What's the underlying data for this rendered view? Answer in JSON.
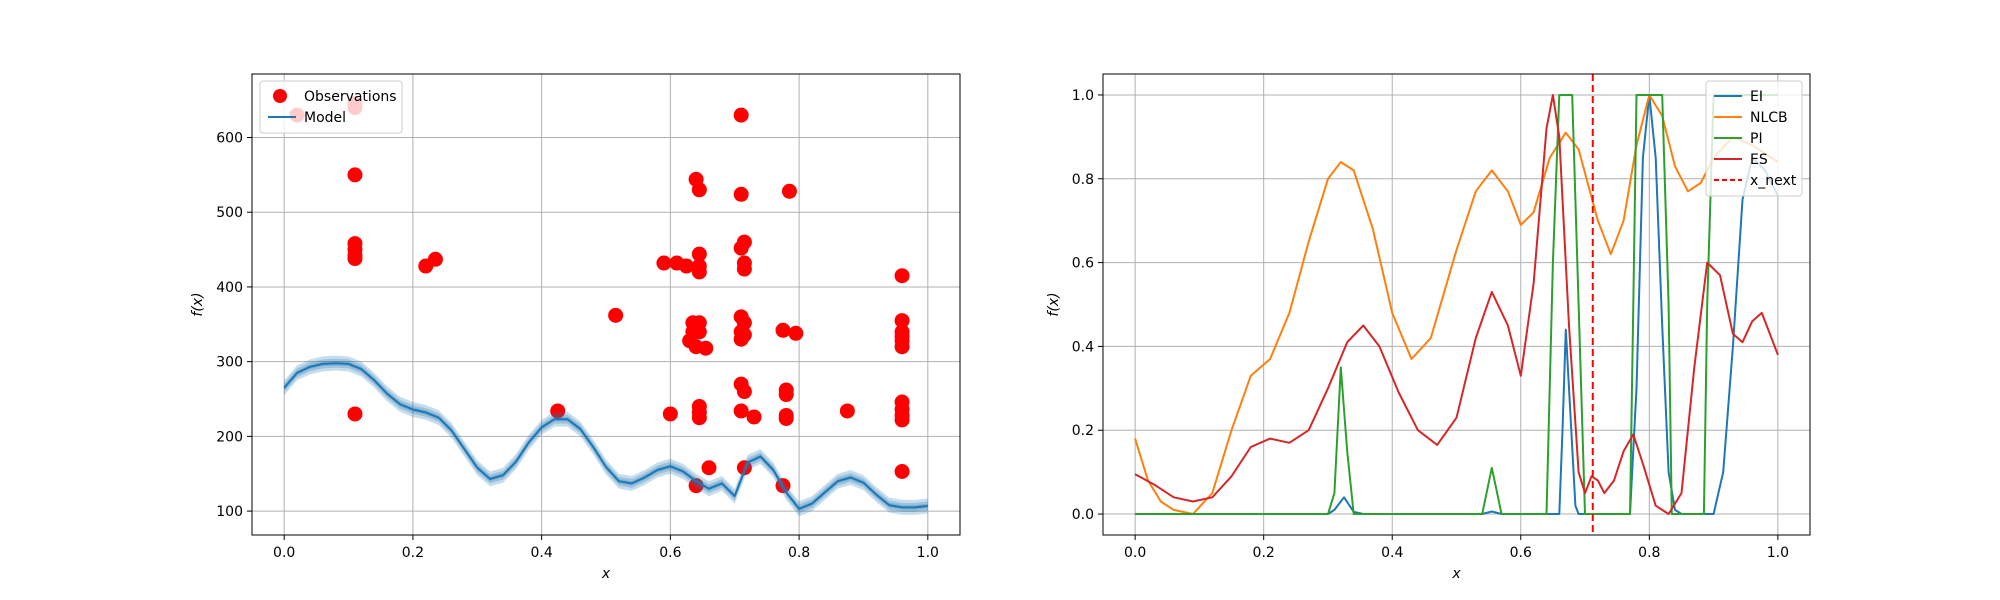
{
  "chart_data": [
    {
      "type": "scatter",
      "xlabel": "x",
      "ylabel": "f(x)",
      "xlim": [
        -0.05,
        1.05
      ],
      "ylim": [
        68,
        685
      ],
      "xticks": [
        "0.0",
        "0.2",
        "0.4",
        "0.6",
        "0.8",
        "1.0"
      ],
      "yticks": [
        "100",
        "200",
        "300",
        "400",
        "500",
        "600"
      ],
      "grid": true,
      "legend_placement": "top-left",
      "series": [
        {
          "name": "Observations",
          "kind": "scatter",
          "color": "#ff0000",
          "points": [
            [
              0.02,
              630
            ],
            [
              0.11,
              645
            ],
            [
              0.11,
              640
            ],
            [
              0.11,
              550
            ],
            [
              0.11,
              458
            ],
            [
              0.11,
              450
            ],
            [
              0.11,
              442
            ],
            [
              0.11,
              438
            ],
            [
              0.11,
              230
            ],
            [
              0.22,
              428
            ],
            [
              0.235,
              437
            ],
            [
              0.425,
              234
            ],
            [
              0.515,
              362
            ],
            [
              0.59,
              432
            ],
            [
              0.6,
              230
            ],
            [
              0.61,
              432
            ],
            [
              0.625,
              428
            ],
            [
              0.63,
              328
            ],
            [
              0.635,
              352
            ],
            [
              0.635,
              340
            ],
            [
              0.64,
              320
            ],
            [
              0.64,
              544
            ],
            [
              0.645,
              530
            ],
            [
              0.645,
              444
            ],
            [
              0.645,
              428
            ],
            [
              0.645,
              420
            ],
            [
              0.645,
              352
            ],
            [
              0.645,
              340
            ],
            [
              0.645,
              240
            ],
            [
              0.645,
              232
            ],
            [
              0.645,
              225
            ],
            [
              0.64,
              134
            ],
            [
              0.655,
              318
            ],
            [
              0.66,
              158
            ],
            [
              0.71,
              630
            ],
            [
              0.71,
              524
            ],
            [
              0.71,
              452
            ],
            [
              0.715,
              460
            ],
            [
              0.715,
              432
            ],
            [
              0.715,
              424
            ],
            [
              0.71,
              360
            ],
            [
              0.715,
              352
            ],
            [
              0.71,
              340
            ],
            [
              0.71,
              330
            ],
            [
              0.715,
              336
            ],
            [
              0.71,
              270
            ],
            [
              0.715,
              260
            ],
            [
              0.71,
              234
            ],
            [
              0.715,
              158
            ],
            [
              0.73,
              226
            ],
            [
              0.775,
              342
            ],
            [
              0.78,
              262
            ],
            [
              0.78,
              256
            ],
            [
              0.78,
              228
            ],
            [
              0.78,
              224
            ],
            [
              0.785,
              528
            ],
            [
              0.795,
              338
            ],
            [
              0.775,
              134
            ],
            [
              0.875,
              234
            ],
            [
              0.96,
              415
            ],
            [
              0.96,
              355
            ],
            [
              0.96,
              340
            ],
            [
              0.96,
              334
            ],
            [
              0.96,
              328
            ],
            [
              0.96,
              320
            ],
            [
              0.96,
              246
            ],
            [
              0.96,
              236
            ],
            [
              0.96,
              228
            ],
            [
              0.96,
              222
            ],
            [
              0.96,
              153
            ]
          ]
        },
        {
          "name": "Model",
          "kind": "line",
          "color": "#1f77b4",
          "band_halfwidth": 10,
          "points": [
            [
              0.0,
              265
            ],
            [
              0.02,
              285
            ],
            [
              0.04,
              293
            ],
            [
              0.06,
              297
            ],
            [
              0.08,
              298
            ],
            [
              0.1,
              297
            ],
            [
              0.12,
              290
            ],
            [
              0.14,
              275
            ],
            [
              0.16,
              257
            ],
            [
              0.18,
              243
            ],
            [
              0.2,
              236
            ],
            [
              0.22,
              232
            ],
            [
              0.24,
              225
            ],
            [
              0.26,
              208
            ],
            [
              0.28,
              183
            ],
            [
              0.3,
              158
            ],
            [
              0.32,
              143
            ],
            [
              0.34,
              148
            ],
            [
              0.36,
              166
            ],
            [
              0.38,
              192
            ],
            [
              0.4,
              212
            ],
            [
              0.42,
              223
            ],
            [
              0.44,
              223
            ],
            [
              0.46,
              210
            ],
            [
              0.48,
              186
            ],
            [
              0.5,
              159
            ],
            [
              0.52,
              140
            ],
            [
              0.54,
              137
            ],
            [
              0.56,
              145
            ],
            [
              0.58,
              155
            ],
            [
              0.6,
              160
            ],
            [
              0.62,
              153
            ],
            [
              0.64,
              140
            ],
            [
              0.66,
              130
            ],
            [
              0.68,
              137
            ],
            [
              0.7,
              120
            ],
            [
              0.72,
              165
            ],
            [
              0.74,
              173
            ],
            [
              0.76,
              155
            ],
            [
              0.78,
              125
            ],
            [
              0.8,
              103
            ],
            [
              0.82,
              110
            ],
            [
              0.84,
              125
            ],
            [
              0.86,
              140
            ],
            [
              0.88,
              145
            ],
            [
              0.9,
              138
            ],
            [
              0.92,
              122
            ],
            [
              0.94,
              108
            ],
            [
              0.96,
              105
            ],
            [
              0.98,
              105
            ],
            [
              1.0,
              107
            ]
          ]
        }
      ]
    },
    {
      "type": "line",
      "xlabel": "x",
      "ylabel": "f(x)",
      "xlim": [
        -0.05,
        1.05
      ],
      "ylim": [
        -0.05,
        1.05
      ],
      "xticks": [
        "0.0",
        "0.2",
        "0.4",
        "0.6",
        "0.8",
        "1.0"
      ],
      "yticks": [
        "0.0",
        "0.2",
        "0.4",
        "0.6",
        "0.8",
        "1.0"
      ],
      "grid": true,
      "legend_placement": "top-right",
      "series": [
        {
          "name": "EI",
          "color": "#1f77b4",
          "points": [
            [
              0.0,
              0
            ],
            [
              0.3,
              0
            ],
            [
              0.31,
              0.01
            ],
            [
              0.325,
              0.04
            ],
            [
              0.34,
              0.005
            ],
            [
              0.355,
              0
            ],
            [
              0.54,
              0
            ],
            [
              0.555,
              0.006
            ],
            [
              0.57,
              0
            ],
            [
              0.66,
              0
            ],
            [
              0.665,
              0.2
            ],
            [
              0.67,
              0.44
            ],
            [
              0.675,
              0.3
            ],
            [
              0.685,
              0.02
            ],
            [
              0.69,
              0
            ],
            [
              0.77,
              0
            ],
            [
              0.78,
              0.3
            ],
            [
              0.79,
              0.85
            ],
            [
              0.8,
              1.0
            ],
            [
              0.81,
              0.85
            ],
            [
              0.82,
              0.45
            ],
            [
              0.83,
              0.1
            ],
            [
              0.84,
              0.01
            ],
            [
              0.85,
              0
            ],
            [
              0.9,
              0
            ],
            [
              0.915,
              0.1
            ],
            [
              0.93,
              0.4
            ],
            [
              0.945,
              0.75
            ],
            [
              0.96,
              0.85
            ],
            [
              0.98,
              0.82
            ],
            [
              1.0,
              0.76
            ]
          ]
        },
        {
          "name": "NLCB",
          "color": "#ff7f0e",
          "points": [
            [
              0.0,
              0.18
            ],
            [
              0.02,
              0.08
            ],
            [
              0.04,
              0.03
            ],
            [
              0.06,
              0.01
            ],
            [
              0.09,
              0.0
            ],
            [
              0.12,
              0.05
            ],
            [
              0.15,
              0.2
            ],
            [
              0.18,
              0.33
            ],
            [
              0.21,
              0.37
            ],
            [
              0.24,
              0.48
            ],
            [
              0.27,
              0.65
            ],
            [
              0.3,
              0.8
            ],
            [
              0.32,
              0.84
            ],
            [
              0.34,
              0.82
            ],
            [
              0.37,
              0.68
            ],
            [
              0.4,
              0.48
            ],
            [
              0.43,
              0.37
            ],
            [
              0.46,
              0.42
            ],
            [
              0.5,
              0.63
            ],
            [
              0.53,
              0.77
            ],
            [
              0.555,
              0.82
            ],
            [
              0.58,
              0.77
            ],
            [
              0.6,
              0.69
            ],
            [
              0.62,
              0.72
            ],
            [
              0.645,
              0.85
            ],
            [
              0.67,
              0.91
            ],
            [
              0.69,
              0.87
            ],
            [
              0.72,
              0.7
            ],
            [
              0.74,
              0.62
            ],
            [
              0.76,
              0.7
            ],
            [
              0.78,
              0.88
            ],
            [
              0.8,
              1.0
            ],
            [
              0.82,
              0.95
            ],
            [
              0.84,
              0.83
            ],
            [
              0.86,
              0.77
            ],
            [
              0.88,
              0.79
            ],
            [
              0.9,
              0.85
            ],
            [
              0.93,
              0.9
            ],
            [
              0.96,
              0.88
            ],
            [
              1.0,
              0.84
            ]
          ]
        },
        {
          "name": "PI",
          "color": "#2ca02c",
          "points": [
            [
              0.0,
              0
            ],
            [
              0.3,
              0
            ],
            [
              0.31,
              0.05
            ],
            [
              0.32,
              0.35
            ],
            [
              0.33,
              0.15
            ],
            [
              0.34,
              0
            ],
            [
              0.54,
              0
            ],
            [
              0.548,
              0.06
            ],
            [
              0.555,
              0.11
            ],
            [
              0.562,
              0.06
            ],
            [
              0.57,
              0
            ],
            [
              0.64,
              0
            ],
            [
              0.65,
              0.6
            ],
            [
              0.66,
              1.0
            ],
            [
              0.68,
              1.0
            ],
            [
              0.69,
              0.5
            ],
            [
              0.7,
              0
            ],
            [
              0.77,
              0
            ],
            [
              0.775,
              0.5
            ],
            [
              0.78,
              1.0
            ],
            [
              0.82,
              1.0
            ],
            [
              0.83,
              0.5
            ],
            [
              0.835,
              0
            ],
            [
              0.885,
              0
            ],
            [
              0.89,
              0.5
            ],
            [
              0.9,
              1.0
            ],
            [
              1.0,
              1.0
            ]
          ]
        },
        {
          "name": "ES",
          "color": "#d62728",
          "points": [
            [
              0.0,
              0.095
            ],
            [
              0.03,
              0.07
            ],
            [
              0.06,
              0.04
            ],
            [
              0.09,
              0.03
            ],
            [
              0.12,
              0.04
            ],
            [
              0.15,
              0.09
            ],
            [
              0.18,
              0.16
            ],
            [
              0.21,
              0.18
            ],
            [
              0.24,
              0.17
            ],
            [
              0.27,
              0.2
            ],
            [
              0.3,
              0.3
            ],
            [
              0.33,
              0.41
            ],
            [
              0.355,
              0.45
            ],
            [
              0.38,
              0.4
            ],
            [
              0.41,
              0.29
            ],
            [
              0.44,
              0.2
            ],
            [
              0.47,
              0.165
            ],
            [
              0.5,
              0.23
            ],
            [
              0.53,
              0.42
            ],
            [
              0.555,
              0.53
            ],
            [
              0.58,
              0.45
            ],
            [
              0.6,
              0.33
            ],
            [
              0.62,
              0.55
            ],
            [
              0.64,
              0.92
            ],
            [
              0.65,
              1.0
            ],
            [
              0.66,
              0.9
            ],
            [
              0.675,
              0.45
            ],
            [
              0.69,
              0.1
            ],
            [
              0.7,
              0.05
            ],
            [
              0.71,
              0.09
            ],
            [
              0.72,
              0.08
            ],
            [
              0.73,
              0.05
            ],
            [
              0.745,
              0.08
            ],
            [
              0.76,
              0.15
            ],
            [
              0.775,
              0.19
            ],
            [
              0.79,
              0.12
            ],
            [
              0.81,
              0.02
            ],
            [
              0.83,
              0.0
            ],
            [
              0.85,
              0.05
            ],
            [
              0.87,
              0.35
            ],
            [
              0.89,
              0.6
            ],
            [
              0.91,
              0.57
            ],
            [
              0.93,
              0.43
            ],
            [
              0.945,
              0.41
            ],
            [
              0.96,
              0.46
            ],
            [
              0.975,
              0.48
            ],
            [
              1.0,
              0.38
            ]
          ]
        },
        {
          "name": "x_next",
          "kind": "vline",
          "color": "#ff0000",
          "x": 0.712
        }
      ]
    }
  ]
}
